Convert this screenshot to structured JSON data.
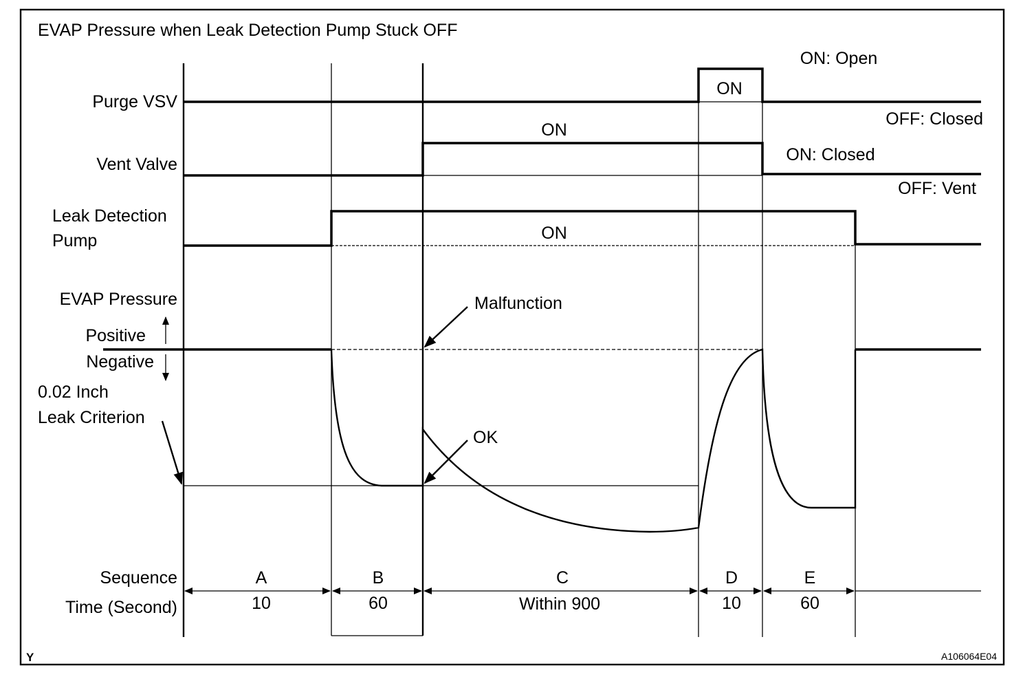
{
  "title": "EVAP Pressure when Leak Detection Pump Stuck OFF",
  "signals": {
    "purge_vsv": "Purge VSV",
    "vent_valve": "Vent Valve",
    "pump_line1": "Leak Detection",
    "pump_line2": "Pump",
    "evap_pressure": "EVAP Pressure",
    "positive": "Positive",
    "negative": "Negative",
    "criterion_line1": "0.02 Inch",
    "criterion_line2": "Leak Criterion"
  },
  "state_labels": {
    "purge_on": "ON",
    "purge_on_meaning": "ON: Open",
    "purge_off_meaning": "OFF: Closed",
    "vent_on": "ON",
    "vent_on_meaning": "ON: Closed",
    "vent_off_meaning": "OFF: Vent",
    "pump_on": "ON"
  },
  "annotations": {
    "malfunction": "Malfunction",
    "ok": "OK"
  },
  "sequence": {
    "row_label": "Sequence",
    "time_label": "Time (Second)",
    "steps": [
      {
        "name": "A",
        "time": "10"
      },
      {
        "name": "B",
        "time": "60"
      },
      {
        "name": "C",
        "time": "Within 900"
      },
      {
        "name": "D",
        "time": "10"
      },
      {
        "name": "E",
        "time": "60"
      }
    ]
  },
  "footer": {
    "left_mark": "Y",
    "figure_id": "A106064E04"
  }
}
